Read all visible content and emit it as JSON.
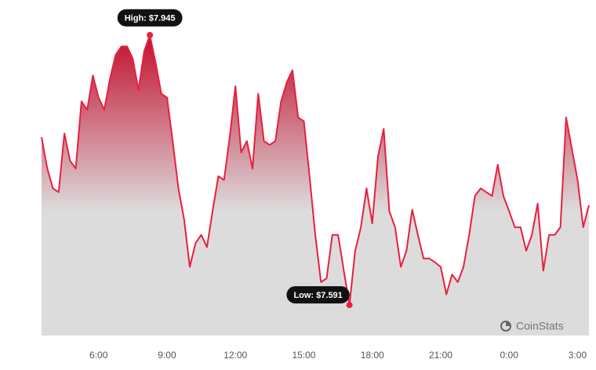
{
  "chart_data": {
    "type": "area",
    "annotations": [
      {
        "text": "High: $7.945"
      },
      {
        "text": "Low: $7.591"
      }
    ],
    "watermark": "CoinStats",
    "color": "#e8203f",
    "categories": [
      null,
      null,
      null,
      null,
      null,
      null,
      null,
      null,
      null,
      null,
      "6:00",
      null,
      null,
      null,
      null,
      null,
      null,
      null,
      null,
      null,
      null,
      null,
      "9:00",
      null,
      null,
      null,
      null,
      null,
      null,
      null,
      null,
      null,
      null,
      null,
      "12:00",
      null,
      null,
      null,
      null,
      null,
      null,
      null,
      null,
      null,
      null,
      null,
      "15:00",
      null,
      null,
      null,
      null,
      null,
      null,
      null,
      null,
      null,
      null,
      null,
      "18:00",
      null,
      null,
      null,
      null,
      null,
      null,
      null,
      null,
      null,
      null,
      null,
      "21:00",
      null,
      null,
      null,
      null,
      null,
      null,
      null,
      null,
      null,
      null,
      null,
      "0:00",
      null,
      null,
      null,
      null,
      null,
      null,
      null,
      null,
      null,
      null,
      null,
      "3:00",
      null,
      null
    ],
    "values": [
      7.811,
      7.77,
      7.744,
      7.739,
      7.816,
      7.78,
      7.77,
      7.858,
      7.847,
      7.892,
      7.863,
      7.847,
      7.888,
      7.919,
      7.93,
      7.93,
      7.914,
      7.873,
      7.924,
      7.945,
      7.909,
      7.868,
      7.863,
      7.806,
      7.744,
      7.703,
      7.641,
      7.672,
      7.683,
      7.667,
      7.714,
      7.76,
      7.755,
      7.811,
      7.878,
      7.791,
      7.806,
      7.77,
      7.868,
      7.806,
      7.801,
      7.806,
      7.858,
      7.883,
      7.899,
      7.837,
      7.832,
      7.76,
      7.683,
      7.621,
      7.626,
      7.683,
      7.683,
      7.636,
      7.591,
      7.662,
      7.693,
      7.744,
      7.698,
      7.786,
      7.822,
      7.714,
      7.693,
      7.641,
      7.662,
      7.716,
      7.683,
      7.652,
      7.652,
      7.647,
      7.641,
      7.605,
      7.631,
      7.621,
      7.641,
      7.683,
      7.734,
      7.744,
      7.739,
      7.734,
      7.775,
      7.734,
      7.714,
      7.693,
      7.693,
      7.662,
      7.683,
      7.724,
      7.636,
      7.683,
      7.683,
      7.693,
      7.837,
      7.796,
      7.755,
      7.693,
      7.722
    ],
    "ylim": [
      7.551,
      7.991
    ]
  }
}
